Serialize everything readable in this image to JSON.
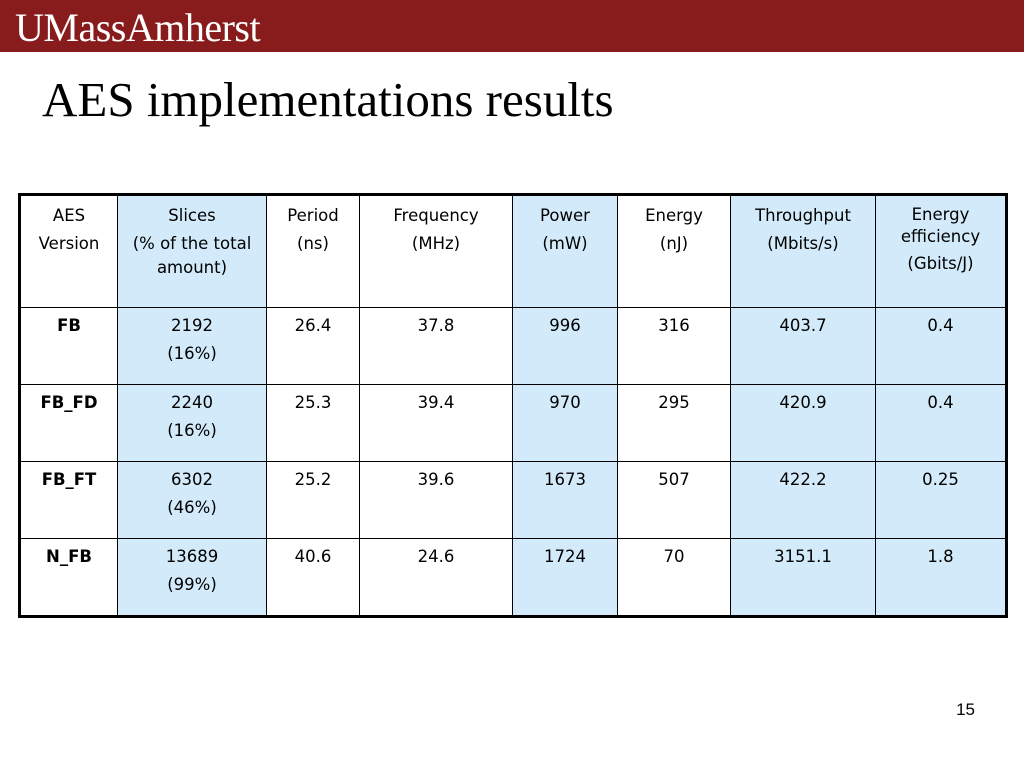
{
  "header": {
    "logo_text": "UMassAmherst",
    "brand_color": "#881c1c"
  },
  "slide": {
    "title": "AES implementations results",
    "page_number": "15"
  },
  "table": {
    "highlight_color": "#d3eafa",
    "columns": [
      {
        "line1": "AES",
        "line2": "Version"
      },
      {
        "line1": "Slices",
        "line2": "(% of the total amount)"
      },
      {
        "line1": "Period",
        "line2": "(ns)"
      },
      {
        "line1": "Frequency",
        "line2": "(MHz)"
      },
      {
        "line1": "Power",
        "line2": "(mW)"
      },
      {
        "line1": "Energy",
        "line2": "(nJ)"
      },
      {
        "line1": "Throughput",
        "line2": "(Mbits/s)"
      },
      {
        "line1": "Energy efficiency",
        "line2": "(Gbits/J)"
      }
    ],
    "rows": [
      {
        "version": "FB",
        "slices": "2192",
        "slices_pct": "(16%)",
        "period": "26.4",
        "frequency": "37.8",
        "power": "996",
        "energy": "316",
        "throughput": "403.7",
        "efficiency": "0.4"
      },
      {
        "version": "FB_FD",
        "slices": "2240",
        "slices_pct": "(16%)",
        "period": "25.3",
        "frequency": "39.4",
        "power": "970",
        "energy": "295",
        "throughput": "420.9",
        "efficiency": "0.4"
      },
      {
        "version": "FB_FT",
        "slices": "6302",
        "slices_pct": "(46%)",
        "period": "25.2",
        "frequency": "39.6",
        "power": "1673",
        "energy": "507",
        "throughput": "422.2",
        "efficiency": "0.25"
      },
      {
        "version": "N_FB",
        "slices": "13689",
        "slices_pct": "(99%)",
        "period": "40.6",
        "frequency": "24.6",
        "power": "1724",
        "energy": "70",
        "throughput": "3151.1",
        "efficiency": "1.8"
      }
    ]
  }
}
